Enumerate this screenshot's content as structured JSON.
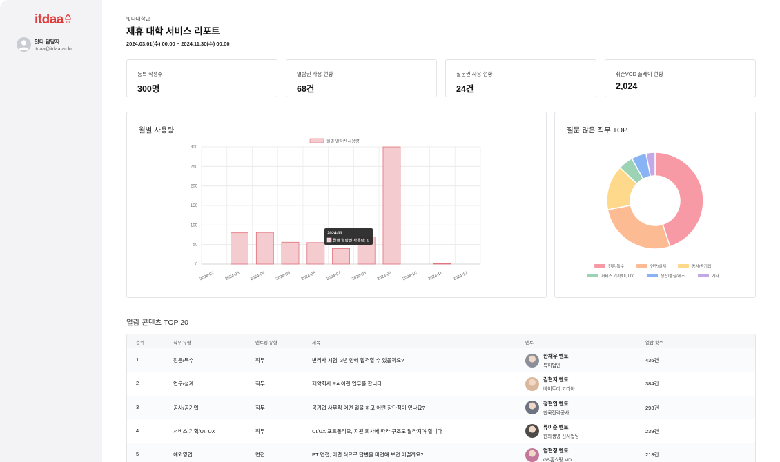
{
  "sidebar": {
    "logo": "itdaa",
    "user_name": "잇다 담당자",
    "user_email": "itdaa@itdaa.ac.kr"
  },
  "header": {
    "school": "잇다대학교",
    "title": "제휴 대학 서비스 리포트",
    "period": "2024.03.01(수) 00:00 ~ 2024.11.30(수) 00:00"
  },
  "stats": [
    {
      "label": "등록 학생수",
      "value": "300명"
    },
    {
      "label": "열람권 사용 현황",
      "value": "68건"
    },
    {
      "label": "질문권 사용 현황",
      "value": "24건"
    },
    {
      "label": "취준VOD 플레이 현황",
      "value": "2,024"
    }
  ],
  "monthly": {
    "title": "월별 사용량",
    "tooltip_title": "2024-11",
    "tooltip_body": "월별 열람권 사용량: 1"
  },
  "chart_data": [
    {
      "type": "bar",
      "title": "월별 사용량",
      "categories": [
        "2024-02",
        "2024-03",
        "2024-04",
        "2024-05",
        "2024-06",
        "2024-07",
        "2024-08",
        "2024-09",
        "2024-10",
        "2024-11",
        "2024-12"
      ],
      "series": [
        {
          "name": "월별 열람권 사용량",
          "values": [
            0,
            80,
            81,
            56,
            55,
            40,
            70,
            300,
            0,
            1,
            0
          ]
        }
      ],
      "ylim": [
        0,
        300
      ],
      "yticks": [
        0,
        50,
        100,
        150,
        200,
        250,
        300
      ],
      "grid": true,
      "legend": "top",
      "color": "#f4cccf",
      "border_color": "#e06f7a"
    },
    {
      "type": "pie",
      "title": "질문 많은 직무 TOP",
      "donut": true,
      "categories": [
        "전문/특수",
        "연구/설계",
        "공사/공기업",
        "서비스 기획/UI, UX",
        "생산/품질/제조",
        "기타"
      ],
      "values": [
        45,
        27,
        15,
        5,
        5,
        3
      ],
      "colors": [
        "#f89aa5",
        "#fdbb93",
        "#fed98b",
        "#9bd3b4",
        "#88b3f5",
        "#c4a7e7"
      ],
      "legend": "bottom"
    }
  ],
  "top20": {
    "title": "열람 콘텐츠 TOP 20",
    "headers": [
      "순위",
      "직무 유형",
      "멘토링 유형",
      "제목",
      "멘토",
      "열람 횟수"
    ],
    "rows": [
      {
        "rank": "1",
        "job": "전문/특수",
        "type": "직무",
        "title": "변리사 시험, 3년 만에 합격할 수 있을까요?",
        "mentor": "한채우 멘토",
        "org": "특허법인",
        "count": "436건",
        "avatar": "#8a8f99"
      },
      {
        "rank": "2",
        "job": "연구/설계",
        "type": "직무",
        "title": "제약회사 RA 이런 업무를 합니다",
        "mentor": "김현지 멘토",
        "org": "바이트리 코리아",
        "count": "384건",
        "avatar": "#d9b79a"
      },
      {
        "rank": "3",
        "job": "공사/공기업",
        "type": "직무",
        "title": "공기업 사무직 어떤 일을 하고 어떤 장단점이 있나요?",
        "mentor": "정현입 멘토",
        "org": "한국전력공사",
        "count": "293건",
        "avatar": "#6b7480"
      },
      {
        "rank": "4",
        "job": "서비스 기획/UI, UX",
        "type": "직무",
        "title": "UI/UX 포트폴리오, 지원 회사에 따라 구조도 달라져야 합니다",
        "mentor": "류이준 멘토",
        "org": "한화생명 신사업팀",
        "count": "239건",
        "avatar": "#4d4a47"
      },
      {
        "rank": "5",
        "job": "해외영업",
        "type": "면접",
        "title": "PT 면접, 이런 식으로 답변을 마련해 보면 어떨까요?",
        "mentor": "염현정 멘토",
        "org": "GS홈쇼핑 MD",
        "count": "213건",
        "avatar": "#c2779b"
      }
    ]
  }
}
